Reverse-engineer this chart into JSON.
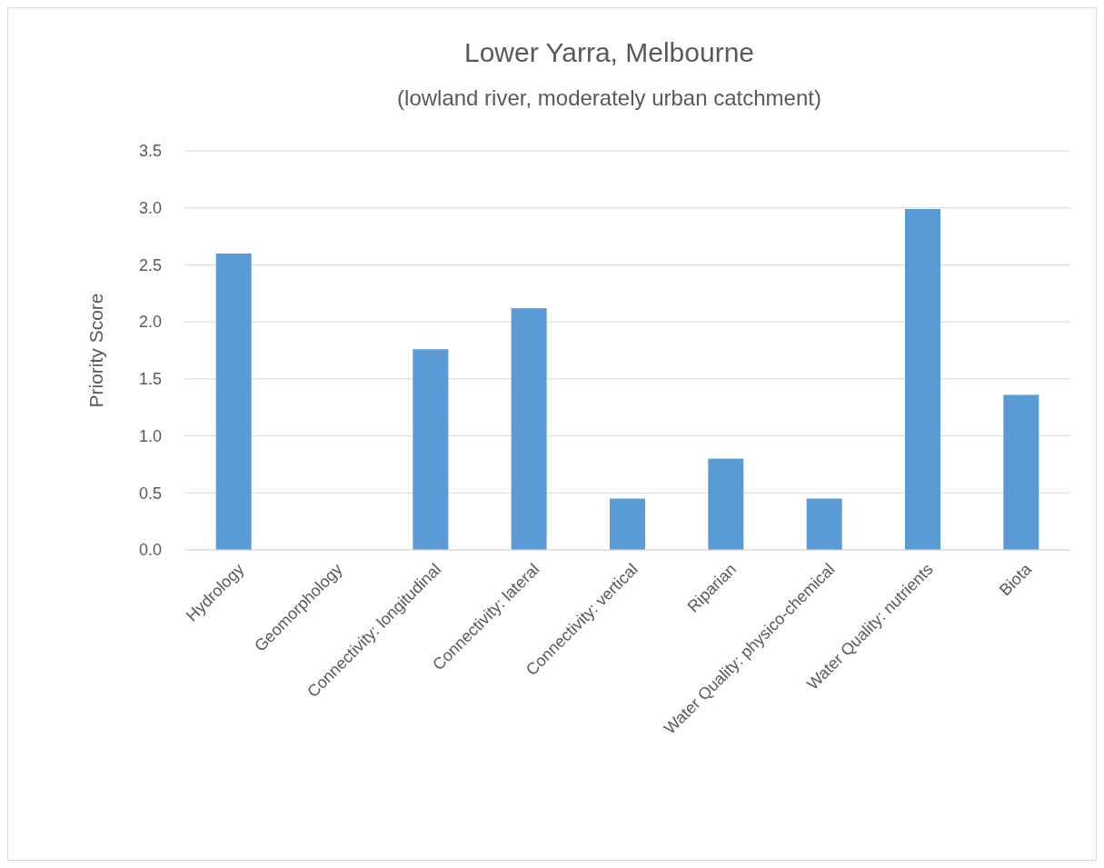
{
  "chart_data": {
    "type": "bar",
    "title": "Lower Yarra, Melbourne",
    "subtitle": "(lowland river, moderately urban catchment)",
    "ylabel": "Priority Score",
    "categories": [
      "Hydrology",
      "Geomorphology",
      "Connectivity: longitudinal",
      "Connectivity: lateral",
      "Connectivity: vertical",
      "Riparian",
      "Water Quality: physico-chemical",
      "Water Quality: nutrients",
      "Biota"
    ],
    "values": [
      2.6,
      0,
      1.76,
      2.12,
      0.45,
      0.8,
      0.45,
      2.99,
      1.36
    ],
    "color": "#5b9bd5",
    "ylim": [
      0,
      3.5
    ],
    "yticks": [
      {
        "value": 0,
        "label": "0.0"
      },
      {
        "value": 0.5,
        "label": "0.5"
      },
      {
        "value": 1,
        "label": "1.0"
      },
      {
        "value": 1.5,
        "label": "1.5"
      },
      {
        "value": 2,
        "label": "2.0"
      },
      {
        "value": 2.5,
        "label": "2.5"
      },
      {
        "value": 3,
        "label": "3.0"
      },
      {
        "value": 3.5,
        "label": "3.5"
      }
    ],
    "grid": "y"
  }
}
